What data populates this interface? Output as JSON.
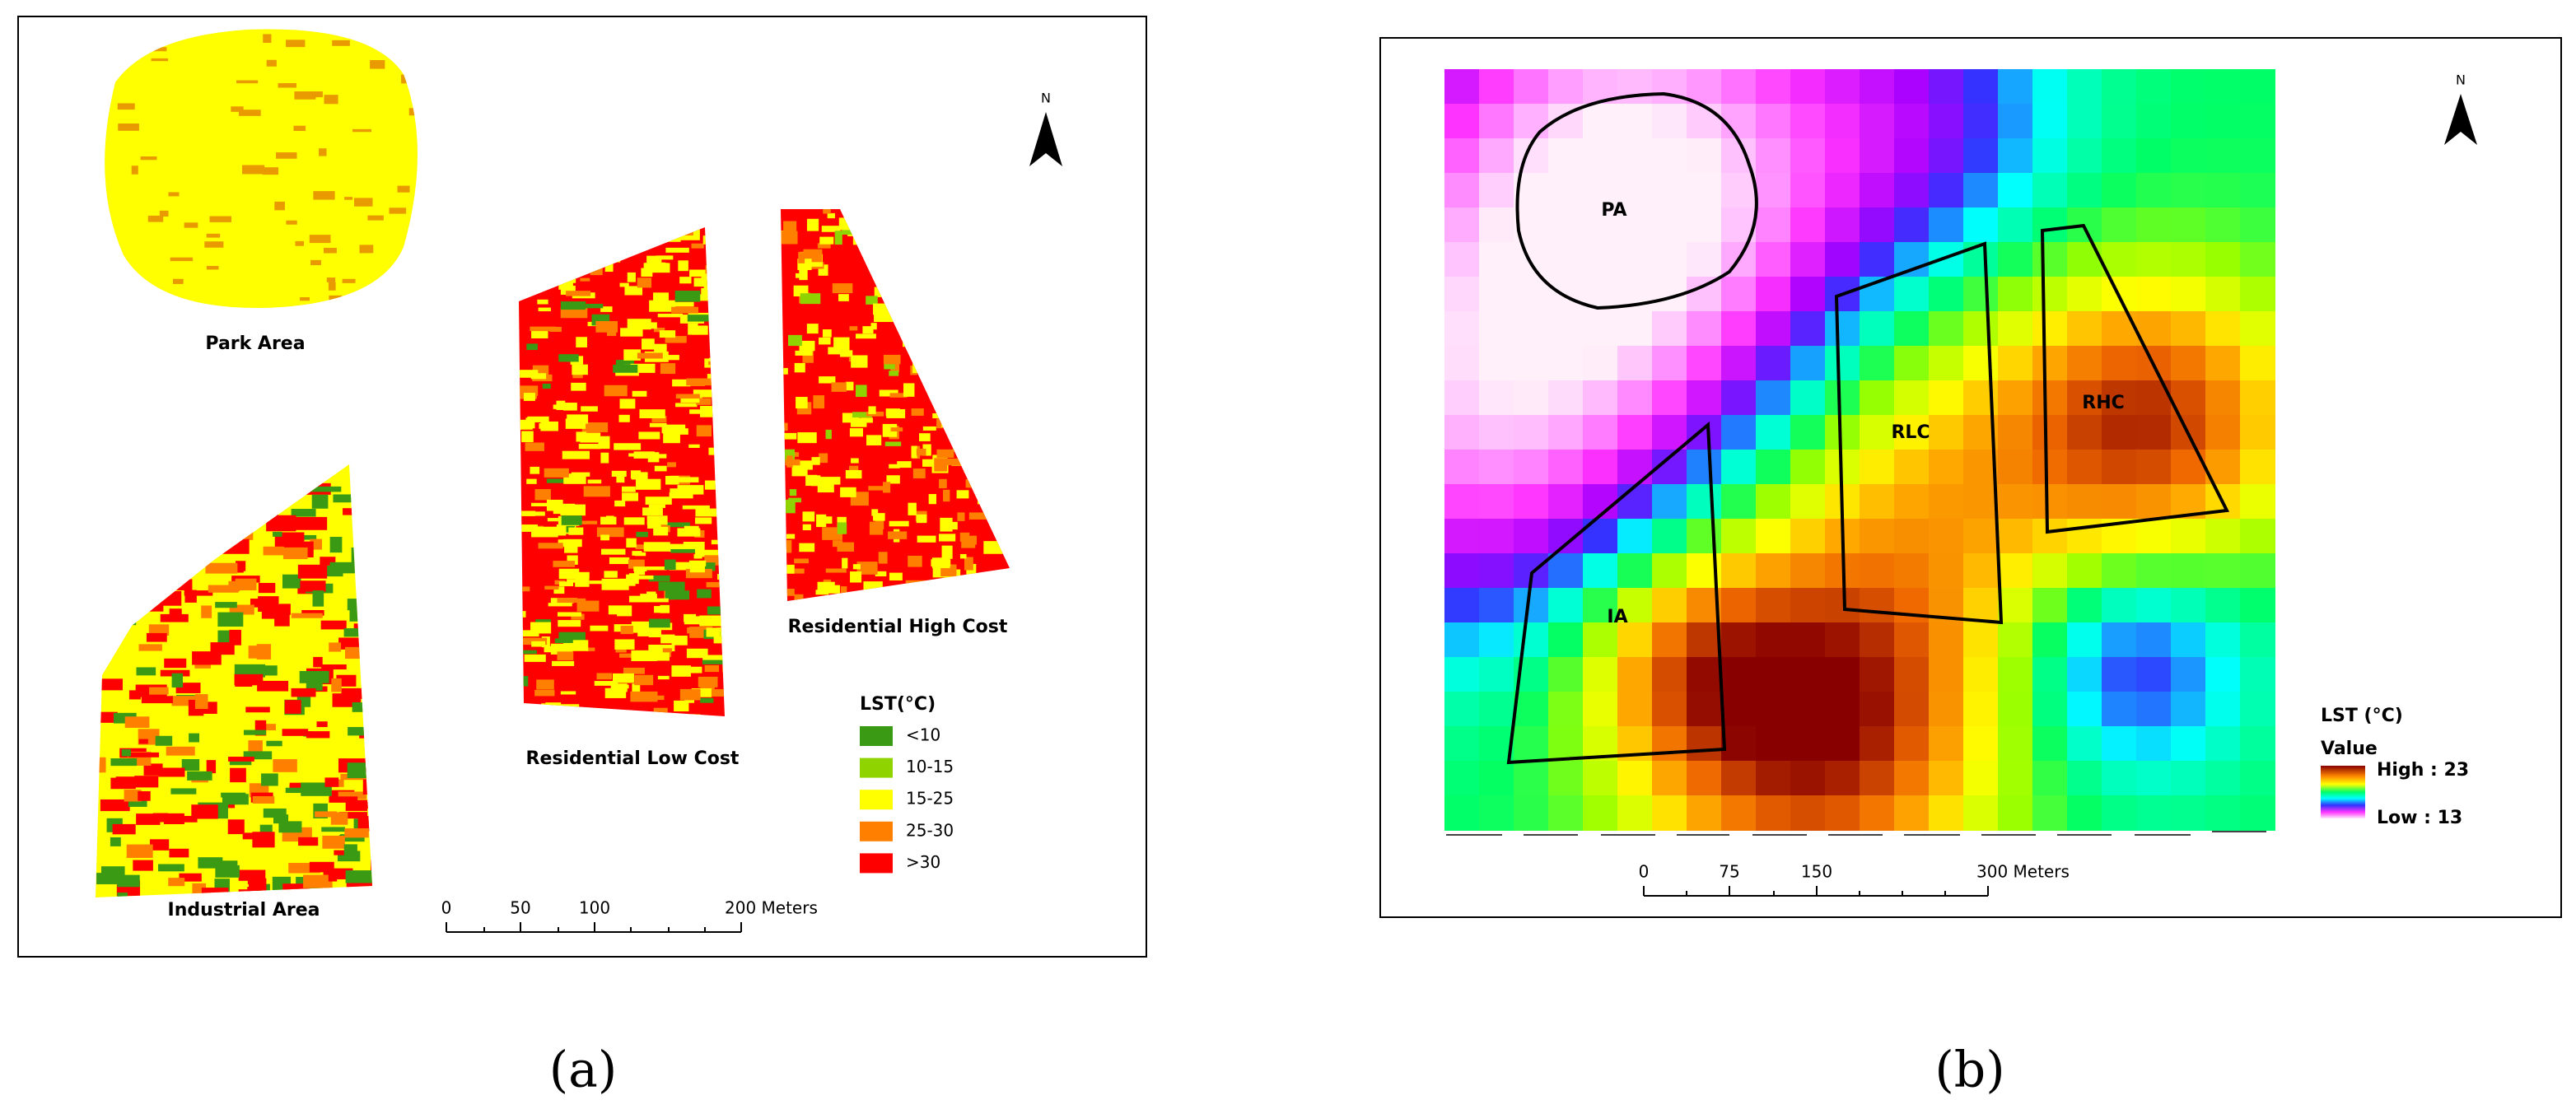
{
  "panel_a": {
    "areas": [
      "Park Area",
      "Residential Low Cost",
      "Residential High Cost",
      "Industrial Area"
    ],
    "north": "N",
    "legend": {
      "title": "LST(°C)",
      "items": [
        {
          "label": "<10",
          "color": "#3a9a14"
        },
        {
          "label": "10-15",
          "color": "#8fd400"
        },
        {
          "label": "15-25",
          "color": "#ffff00"
        },
        {
          "label": "25-30",
          "color": "#ff8000"
        },
        {
          "label": ">30",
          "color": "#ff0000"
        }
      ]
    },
    "scale": [
      "0",
      "50",
      "100",
      "200 Meters"
    ],
    "caption": "(a)"
  },
  "panel_b": {
    "areas": [
      "PA",
      "RLC",
      "RHC",
      "IA"
    ],
    "north": "N",
    "legend": {
      "title": "LST (°C)",
      "subtitle": "Value",
      "high": "High : 23",
      "low": "Low : 13"
    },
    "scale": [
      "0",
      "75",
      "150",
      "300 Meters"
    ],
    "caption": "(b)"
  }
}
